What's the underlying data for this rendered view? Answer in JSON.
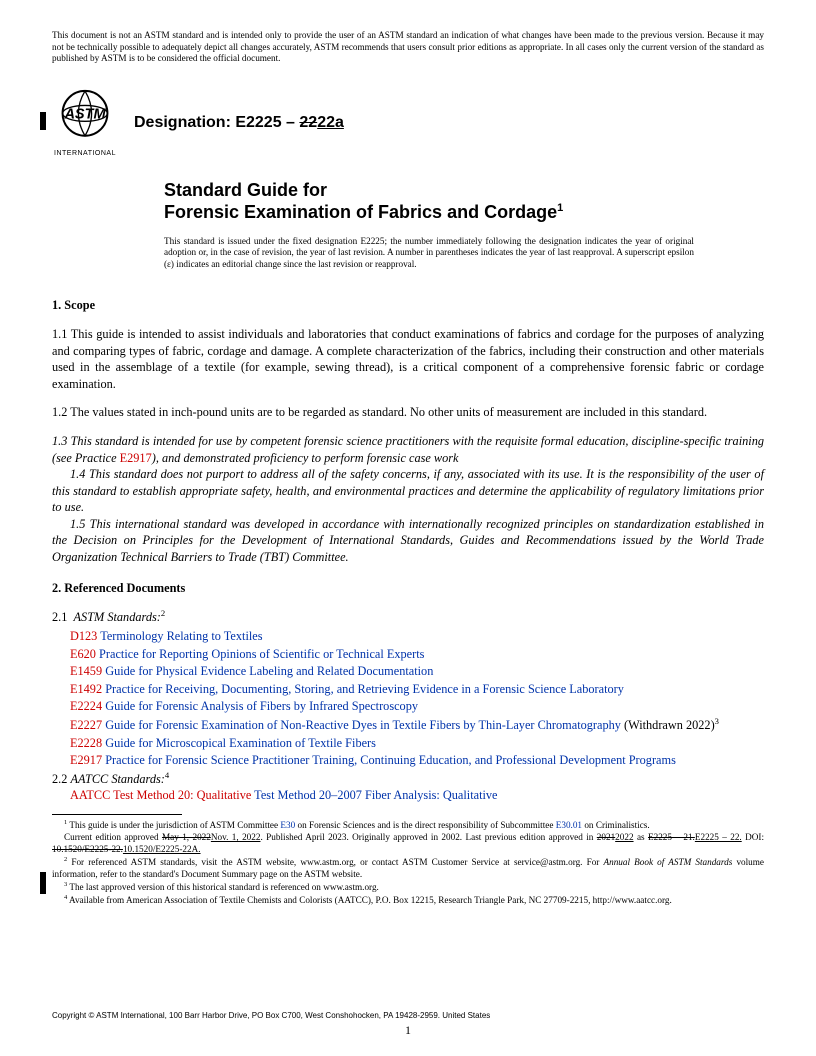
{
  "disclaimer": "This document is not an ASTM standard and is intended only to provide the user of an ASTM standard an indication of what changes have been made to the previous version. Because it may not be technically possible to adequately depict all changes accurately, ASTM recommends that users consult prior editions as appropriate. In all cases only the current version of the standard as published by ASTM is to be considered the official document.",
  "logo_text": "ASTM",
  "logo_sub": "INTERNATIONAL",
  "designation_label": "Designation: E2225 – ",
  "designation_old": "22",
  "designation_new": "22a",
  "title_line1": "Standard Guide for",
  "title_line2": "Forensic Examination of Fabrics and Cordage",
  "title_sup": "1",
  "issuance": "This standard is issued under the fixed designation E2225; the number immediately following the designation indicates the year of original adoption or, in the case of revision, the year of last revision. A number in parentheses indicates the year of last reapproval. A superscript epsilon (ε) indicates an editorial change since the last revision or reapproval.",
  "sec1_head": "1.  Scope",
  "p1_1": "1.1  This guide is intended to assist individuals and laboratories that conduct examinations of fabrics and cordage for the purposes of analyzing and comparing types of fabric, cordage and damage. A complete characterization of the fabrics, including their construction and other materials used in the assemblage of a textile (for example, sewing thread), is a critical component of a comprehensive forensic fabric or cordage examination.",
  "p1_2": "1.2 The values stated in inch-pound units are to be regarded as standard. No other units of measurement are included in this standard.",
  "p1_3a": "1.3 This standard is intended for use by competent forensic science practitioners with the requisite formal education, discipline-specific training (see Practice ",
  "p1_3_link": "E2917",
  "p1_3b": "), and demonstrated proficiency to perform forensic case work",
  "p1_4": "1.4 This standard does not purport to address all of the safety concerns, if any, associated with its use. It is the responsibility of the user of this standard to establish appropriate safety, health, and environmental practices and determine the applicability of regulatory limitations prior to use.",
  "p1_5": "1.5 This international standard was developed in accordance with internationally recognized principles on standardization established in the Decision on Principles for the Development of International Standards, Guides and Recommendations issued by the World Trade Organization Technical Barriers to Trade (TBT) Committee.",
  "sec2_head": "2.  Referenced Documents",
  "p2_1": "2.1  ASTM Standards:",
  "sup2": "2",
  "refs": [
    {
      "code": "D123",
      "title": "Terminology Relating to Textiles",
      "tail": ""
    },
    {
      "code": "E620",
      "title": "Practice for Reporting Opinions of Scientific or Technical Experts",
      "tail": ""
    },
    {
      "code": "E1459",
      "title": "Guide for Physical Evidence Labeling and Related Documentation",
      "tail": ""
    },
    {
      "code": "E1492",
      "title": "Practice for Receiving, Documenting, Storing, and Retrieving Evidence in a Forensic Science Laboratory",
      "tail": ""
    },
    {
      "code": "E2224",
      "title": "Guide for Forensic Analysis of Fibers by Infrared Spectroscopy",
      "tail": ""
    },
    {
      "code": "E2227",
      "title": "Guide for Forensic Examination of Non-Reactive Dyes in Textile Fibers by Thin-Layer Chromatography",
      "tail": " (Withdrawn 2022)",
      "sup": "3"
    },
    {
      "code": "E2228",
      "title": "Guide for Microscopical Examination of Textile Fibers",
      "tail": ""
    },
    {
      "code": "E2917",
      "title": "Practice for Forensic Science Practitioner Training, Continuing Education, and Professional Development Programs",
      "tail": ""
    }
  ],
  "p2_2": "2.2 AATCC Standards:",
  "sup4": "4",
  "aatcc_code": "AATCC Test Method 20: Qualitative",
  "aatcc_title": "Test Method 20–2007 Fiber Analysis: Qualitative",
  "fn1a": " This guide is under the jurisdiction of ASTM Committee ",
  "fn1_link1": "E30",
  "fn1b": " on Forensic Sciences and is the direct responsibility of Subcommittee ",
  "fn1_link2": "E30.01",
  "fn1c": " on Criminalistics.",
  "fn1d_a": "Current edition approved ",
  "fn1d_strike1": "May 1, 2022",
  "fn1d_new1": "Nov. 1, 2022",
  "fn1d_b": ". Published April 2023. Originally approved in 2002. Last previous edition approved in ",
  "fn1d_strike2": "2021",
  "fn1d_new2": "2022",
  "fn1d_c": " as ",
  "fn1d_strike3": "E2225 – 21.",
  "fn1d_new3": "E2225 – 22.",
  "fn1d_d": " DOI: ",
  "fn1d_strike4": "10.1520/E2225-22.",
  "fn1d_new4": "10.1520/E2225-22A.",
  "fn2": " For referenced ASTM standards, visit the ASTM website, www.astm.org, or contact ASTM Customer Service at service@astm.org. For Annual Book of ASTM Standards volume information, refer to the standard's Document Summary page on the ASTM website.",
  "fn2_ital": "Annual Book of ASTM Standards",
  "fn3": " The last approved version of this historical standard is referenced on www.astm.org.",
  "fn4": " Available from American Association of Textile Chemists and Colorists (AATCC), P.O. Box 12215, Research Triangle Park, NC 27709-2215, http://www.aatcc.org.",
  "copyright": "Copyright © ASTM International, 100 Barr Harbor Drive, PO Box C700, West Conshohocken, PA 19428-2959. United States",
  "pagenum": "1"
}
